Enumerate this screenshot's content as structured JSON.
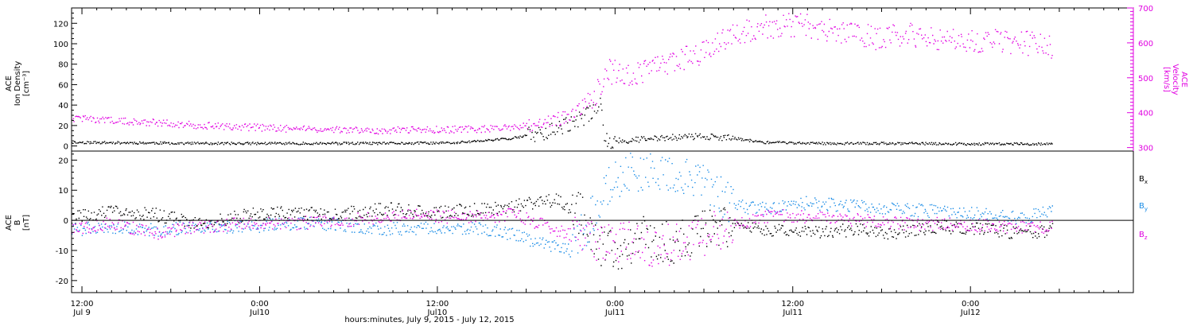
{
  "colors": {
    "axis": "#000000",
    "magenta": "#e100e1",
    "blue": "#1a8ce6",
    "black": "#000000"
  },
  "x_axis": {
    "ticks": [
      {
        "t": 0,
        "time": "12:00",
        "day": "Jul 9"
      },
      {
        "t": 12,
        "time": "0:00",
        "day": "Jul10"
      },
      {
        "t": 24,
        "time": "12:00",
        "day": "Jul10"
      },
      {
        "t": 36,
        "time": "0:00",
        "day": "Jul11"
      },
      {
        "t": 48,
        "time": "12:00",
        "day": "Jul11"
      },
      {
        "t": 60,
        "time": "0:00",
        "day": "Jul12"
      }
    ],
    "range": [
      -0.7,
      71.0
    ],
    "label": "hours:minutes, July  9, 2015 - July 12, 2015"
  },
  "chart_data": [
    {
      "type": "scatter",
      "title": "",
      "ylabel_left": [
        "ACE",
        "Ion Density",
        "[cm⁻³]"
      ],
      "ylabel_right": [
        "ACE",
        "Velocity",
        "[km/s]"
      ],
      "ylim_left": [
        -5,
        135
      ],
      "yticks_left": [
        0,
        20,
        40,
        60,
        80,
        100,
        120
      ],
      "ylim_right": [
        290,
        700
      ],
      "yticks_right": [
        300,
        400,
        500,
        600,
        700
      ],
      "series": [
        {
          "axis": "left",
          "color": "#000000",
          "points": [
            [
              -0.7,
              4
            ],
            [
              4,
              3.5
            ],
            [
              8,
              3
            ],
            [
              14,
              3
            ],
            [
              20,
              3
            ],
            [
              25,
              3.5
            ],
            [
              27.5,
              6
            ],
            [
              29,
              8
            ],
            [
              30.5,
              12
            ],
            [
              31.5,
              15
            ],
            [
              32.5,
              20
            ],
            [
              33.5,
              25
            ],
            [
              34.5,
              35
            ],
            [
              35,
              45
            ],
            [
              35.3,
              5
            ],
            [
              38,
              7
            ],
            [
              40,
              9
            ],
            [
              42,
              10
            ],
            [
              44,
              8
            ],
            [
              46,
              4
            ],
            [
              50,
              3
            ],
            [
              55,
              3
            ],
            [
              60,
              2.5
            ],
            [
              65.5,
              2.5
            ]
          ]
        },
        {
          "axis": "right",
          "color": "#e100e1",
          "points": [
            [
              -0.7,
              385
            ],
            [
              4,
              375
            ],
            [
              8,
              365
            ],
            [
              14,
              355
            ],
            [
              20,
              350
            ],
            [
              27.5,
              355
            ],
            [
              30,
              365
            ],
            [
              32,
              380
            ],
            [
              33.5,
              410
            ],
            [
              34.5,
              440
            ],
            [
              35.5,
              520
            ],
            [
              37,
              510
            ],
            [
              39,
              540
            ],
            [
              41,
              560
            ],
            [
              43,
              600
            ],
            [
              45,
              640
            ],
            [
              47.5,
              655
            ],
            [
              49,
              650
            ],
            [
              51,
              630
            ],
            [
              54,
              615
            ],
            [
              56,
              625
            ],
            [
              58,
              615
            ],
            [
              60,
              610
            ],
            [
              62,
              605
            ],
            [
              64,
              600
            ],
            [
              65.5,
              585
            ]
          ]
        }
      ]
    },
    {
      "type": "scatter",
      "title": "",
      "ylabel_left": [
        "ACE",
        "B",
        "[nT]"
      ],
      "ylim": [
        -24,
        23
      ],
      "yticks": [
        -20,
        -10,
        0,
        10,
        20
      ],
      "zero_line": true,
      "legend": [
        {
          "label": "B",
          "sub": "x",
          "color": "#000000"
        },
        {
          "label": "B",
          "sub": "y",
          "color": "#1a8ce6"
        },
        {
          "label": "B",
          "sub": "z",
          "color": "#e100e1"
        }
      ],
      "series": [
        {
          "name": "Bx",
          "color": "#000000",
          "points": [
            [
              -0.7,
              1
            ],
            [
              2,
              3
            ],
            [
              5,
              2
            ],
            [
              8,
              -1
            ],
            [
              11,
              2
            ],
            [
              14,
              3
            ],
            [
              17,
              2
            ],
            [
              20,
              4
            ],
            [
              24,
              3
            ],
            [
              28,
              4
            ],
            [
              30.5,
              6
            ],
            [
              32,
              7
            ],
            [
              33.5,
              3
            ],
            [
              35,
              -8
            ],
            [
              36.5,
              -10
            ],
            [
              38,
              -5
            ],
            [
              40,
              -8
            ],
            [
              42,
              -3
            ],
            [
              44,
              -2
            ],
            [
              46,
              -3
            ],
            [
              49,
              -4
            ],
            [
              52,
              -3
            ],
            [
              55,
              -4
            ],
            [
              58,
              -2
            ],
            [
              61,
              -3
            ],
            [
              63.5,
              -4
            ],
            [
              65.5,
              -3
            ]
          ]
        },
        {
          "name": "By",
          "color": "#1a8ce6",
          "points": [
            [
              -0.7,
              -3
            ],
            [
              2,
              -2
            ],
            [
              5,
              -3
            ],
            [
              8,
              -2
            ],
            [
              11,
              -2
            ],
            [
              14,
              -1
            ],
            [
              17,
              -1
            ],
            [
              20,
              -3
            ],
            [
              24,
              -2
            ],
            [
              28,
              -3
            ],
            [
              30,
              -6
            ],
            [
              31.5,
              -8
            ],
            [
              33,
              -10
            ],
            [
              34.5,
              2
            ],
            [
              35.5,
              12
            ],
            [
              37,
              16
            ],
            [
              39,
              17
            ],
            [
              41,
              15
            ],
            [
              42.5,
              10
            ],
            [
              44,
              5
            ],
            [
              46,
              4
            ],
            [
              49,
              6
            ],
            [
              52,
              5
            ],
            [
              55,
              4
            ],
            [
              58,
              3
            ],
            [
              61,
              2
            ],
            [
              63.5,
              1
            ],
            [
              65.5,
              3
            ]
          ]
        },
        {
          "name": "Bz",
          "color": "#e100e1",
          "points": [
            [
              -0.7,
              -3
            ],
            [
              2,
              -1
            ],
            [
              5,
              -4
            ],
            [
              8,
              -2
            ],
            [
              11,
              -1
            ],
            [
              14,
              -1
            ],
            [
              17,
              0
            ],
            [
              20,
              1
            ],
            [
              23,
              2
            ],
            [
              26,
              1
            ],
            [
              29,
              2
            ],
            [
              31,
              -1
            ],
            [
              32.5,
              -4
            ],
            [
              34,
              -6
            ],
            [
              35.5,
              -8
            ],
            [
              37,
              -6
            ],
            [
              39,
              -9
            ],
            [
              41,
              -6
            ],
            [
              43,
              -3
            ],
            [
              45,
              0
            ],
            [
              47,
              2
            ],
            [
              50,
              1
            ],
            [
              53,
              0
            ],
            [
              56,
              -1
            ],
            [
              59,
              -1
            ],
            [
              62,
              -2
            ],
            [
              65.5,
              -2
            ]
          ]
        }
      ]
    }
  ]
}
